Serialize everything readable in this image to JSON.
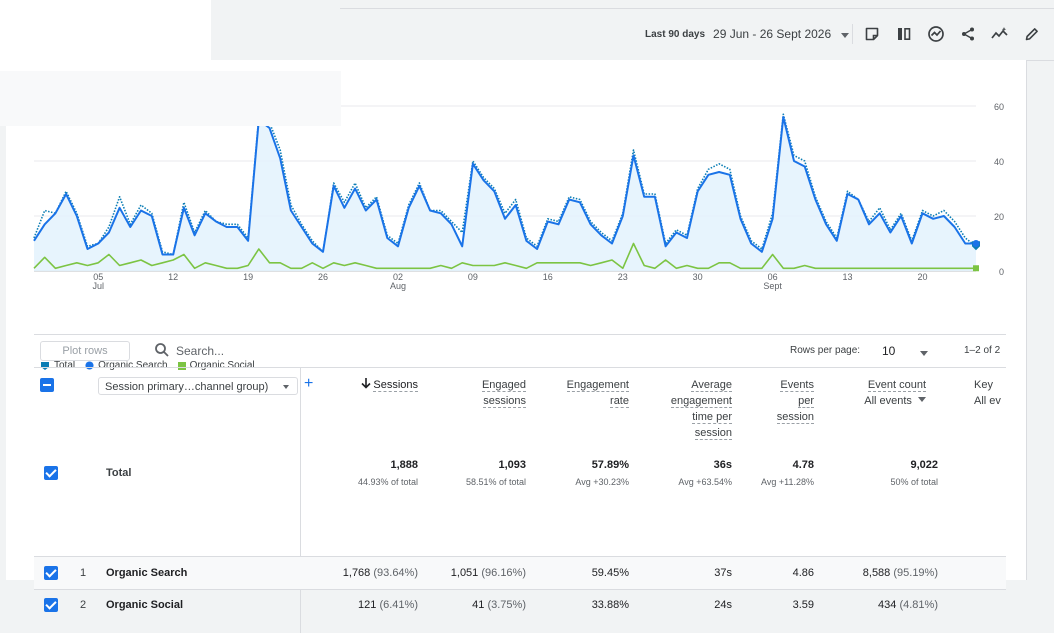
{
  "header": {
    "date_label": "Last 90 days",
    "date_range": "29 Jun - 26 Sept 2026",
    "toolbar_icons": [
      "note-icon",
      "compare-columns-icon",
      "insights-icon",
      "share-icon",
      "trend-icon",
      "edit-icon"
    ]
  },
  "chart_data": {
    "type": "line",
    "y_ticks": [
      "60",
      "40",
      "20",
      "0"
    ],
    "ylim": [
      0,
      60
    ],
    "x_ticks": [
      {
        "label": "05",
        "sub": "Jul",
        "index": 6
      },
      {
        "label": "12",
        "sub": "",
        "index": 13
      },
      {
        "label": "19",
        "sub": "",
        "index": 20
      },
      {
        "label": "26",
        "sub": "",
        "index": 27
      },
      {
        "label": "02",
        "sub": "Aug",
        "index": 34
      },
      {
        "label": "09",
        "sub": "",
        "index": 41
      },
      {
        "label": "16",
        "sub": "",
        "index": 48
      },
      {
        "label": "23",
        "sub": "",
        "index": 55
      },
      {
        "label": "30",
        "sub": "",
        "index": 62
      },
      {
        "label": "06",
        "sub": "Sept",
        "index": 69
      },
      {
        "label": "13",
        "sub": "",
        "index": 76
      },
      {
        "label": "20",
        "sub": "",
        "index": 83
      }
    ],
    "grid": true,
    "legend_position": "bottom-left",
    "series": [
      {
        "name": "Total",
        "color": "#0b7db4",
        "style": "dotted",
        "values": [
          12,
          22,
          21,
          29,
          21,
          9,
          10,
          16,
          27,
          17,
          24,
          21,
          7,
          6,
          25,
          14,
          22,
          18,
          17,
          17,
          12,
          56,
          54,
          44,
          24,
          17,
          11,
          7,
          32,
          25,
          32,
          23,
          27,
          13,
          10,
          24,
          32,
          22,
          22,
          18,
          14,
          40,
          34,
          30,
          21,
          26,
          12,
          9,
          19,
          18,
          27,
          26,
          18,
          14,
          11,
          21,
          44,
          28,
          28,
          10,
          15,
          13,
          30,
          37,
          39,
          37,
          20,
          11,
          8,
          21,
          57,
          42,
          40,
          27,
          18,
          12,
          29,
          26,
          18,
          23,
          15,
          21,
          11,
          22,
          20,
          22,
          18,
          12,
          9
        ]
      },
      {
        "name": "Organic Search",
        "color": "#1a73e8",
        "style": "solid",
        "values": [
          11,
          17,
          21,
          28,
          20,
          8,
          10,
          14,
          23,
          16,
          22,
          20,
          6,
          6,
          23,
          13,
          21,
          18,
          16,
          16,
          11,
          55,
          52,
          41,
          22,
          16,
          10,
          7,
          31,
          23,
          30,
          22,
          26,
          12,
          9,
          23,
          31,
          22,
          21,
          17,
          9,
          39,
          33,
          29,
          19,
          24,
          11,
          8,
          18,
          17,
          26,
          25,
          17,
          13,
          10,
          20,
          42,
          27,
          27,
          9,
          14,
          12,
          29,
          35,
          36,
          35,
          19,
          10,
          7,
          19,
          56,
          40,
          38,
          26,
          17,
          11,
          28,
          26,
          17,
          21,
          14,
          20,
          10,
          21,
          19,
          20,
          16,
          10,
          10
        ]
      },
      {
        "name": "Organic Social",
        "color": "#7cc443",
        "style": "solid",
        "values": [
          1,
          5,
          1,
          2,
          3,
          2,
          3,
          6,
          2,
          3,
          4,
          2,
          3,
          4,
          6,
          1,
          3,
          2,
          1,
          1,
          2,
          8,
          3,
          3,
          1,
          1,
          3,
          1,
          3,
          2,
          3,
          2,
          1,
          1,
          1,
          1,
          1,
          1,
          2,
          1,
          3,
          2,
          2,
          2,
          3,
          2,
          1,
          3,
          3,
          3,
          3,
          3,
          2,
          3,
          4,
          1,
          10,
          2,
          1,
          4,
          1,
          2,
          1,
          1,
          3,
          3,
          1,
          1,
          1,
          6,
          1,
          1,
          2,
          1,
          1,
          1,
          1,
          1,
          1,
          1,
          1,
          1,
          1,
          1,
          1,
          1,
          1,
          1,
          1
        ]
      }
    ]
  },
  "controls": {
    "plot_rows": "Plot rows",
    "search_placeholder": "Search...",
    "rows_per_page_label": "Rows per page:",
    "rows_per_page_value": "10",
    "pager": "1–2 of 2"
  },
  "table": {
    "dimension": "Session primary…channel group)",
    "columns": {
      "sessions": "Sessions",
      "engaged_sessions": [
        "Engaged",
        "sessions"
      ],
      "engagement_rate": [
        "Engagement",
        "rate"
      ],
      "avg_time": [
        "Average",
        "engagement",
        "time per",
        "session"
      ],
      "events_per_session": [
        "Events",
        "per",
        "session"
      ],
      "event_count": "Event count",
      "event_count_sub": "All events",
      "key_events": "Key",
      "key_events_sub": "All ev"
    },
    "total": {
      "label": "Total",
      "sessions": "1,888",
      "sessions_sub": "44.93% of total",
      "engaged": "1,093",
      "engaged_sub": "58.51% of total",
      "rate": "57.89%",
      "rate_sub": "Avg +30.23%",
      "time": "36s",
      "time_sub": "Avg +63.54%",
      "eps": "4.78",
      "eps_sub": "Avg +11.28%",
      "events": "9,022",
      "events_sub": "50% of total"
    },
    "rows": [
      {
        "rank": "1",
        "label": "Organic Search",
        "sessions": "1,768",
        "sessions_pct": "(93.64%)",
        "engaged": "1,051",
        "engaged_pct": "(96.16%)",
        "rate": "59.45%",
        "time": "37s",
        "eps": "4.86",
        "events": "8,588",
        "events_pct": "(95.19%)"
      },
      {
        "rank": "2",
        "label": "Organic Social",
        "sessions": "121",
        "sessions_pct": "(6.41%)",
        "engaged": "41",
        "engaged_pct": "(3.75%)",
        "rate": "33.88%",
        "time": "24s",
        "eps": "3.59",
        "events": "434",
        "events_pct": "(4.81%)"
      }
    ]
  }
}
